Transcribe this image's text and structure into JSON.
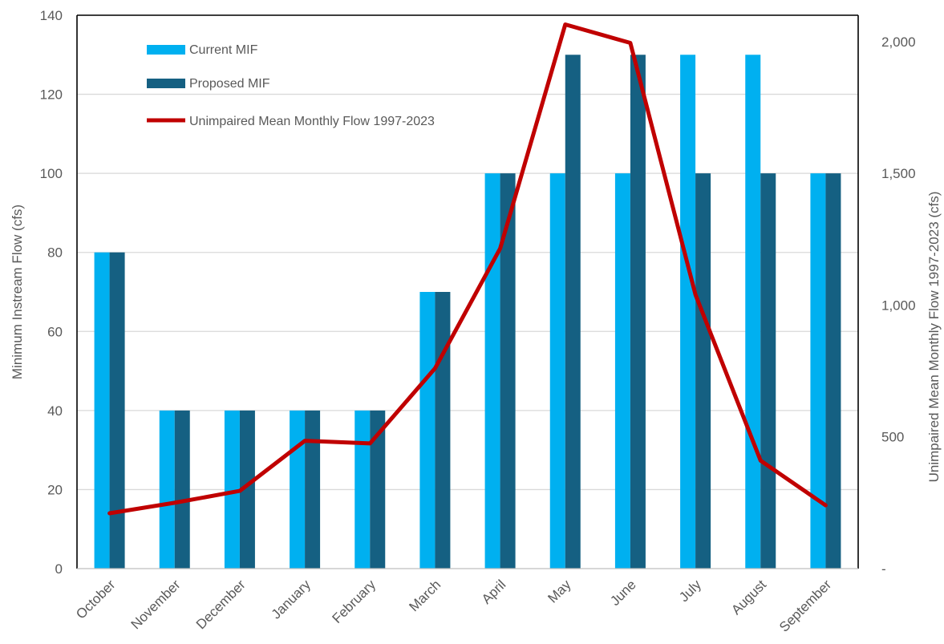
{
  "chart_data": {
    "type": "bar",
    "categories": [
      "October",
      "November",
      "December",
      "January",
      "February",
      "March",
      "April",
      "May",
      "June",
      "July",
      "August",
      "September"
    ],
    "series": [
      {
        "name": "Current MIF",
        "kind": "bar",
        "axis": "left",
        "color": "#00B0F0",
        "values": [
          80,
          40,
          40,
          40,
          40,
          70,
          100,
          100,
          100,
          130,
          130,
          100
        ]
      },
      {
        "name": "Proposed MIF",
        "kind": "bar",
        "axis": "left",
        "color": "#156082",
        "values": [
          80,
          40,
          40,
          40,
          40,
          70,
          100,
          130,
          130,
          100,
          100,
          100
        ]
      },
      {
        "name": "Unimpaired Mean Monthly Flow 1997-2023",
        "kind": "line",
        "axis": "right",
        "color": "#C00000",
        "values": [
          210,
          250,
          295,
          485,
          475,
          760,
          1215,
          2065,
          1995,
          1040,
          410,
          240
        ]
      }
    ],
    "ylabel": "Minimum Instream Flow (cfs)",
    "y2label": "Unimpaired Mean Monthly Flow 1997-2023 (cfs)",
    "ylim": [
      0,
      140
    ],
    "y2lim": [
      0,
      2100
    ],
    "yticks": [
      "0",
      "20",
      "40",
      "60",
      "80",
      "100",
      "120",
      "140"
    ],
    "y2ticks": [
      "-",
      "500",
      "1,000",
      "1,500",
      "2,000"
    ],
    "grid": true,
    "legend_position": "top-left"
  }
}
